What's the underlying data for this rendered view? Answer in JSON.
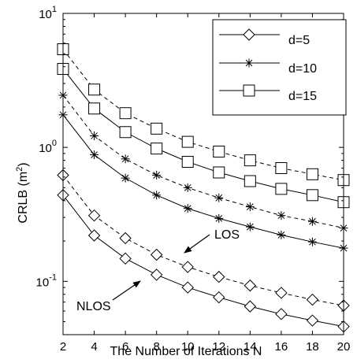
{
  "chart_data": {
    "type": "line",
    "title": "",
    "xlabel": "The Number of Iterations N",
    "ylabel_main": "CRLB (m",
    "ylabel_sup": "2",
    "ylabel_close": ")",
    "x": [
      2,
      4,
      6,
      8,
      10,
      12,
      14,
      16,
      18,
      20
    ],
    "xlim": [
      2,
      20
    ],
    "ylim": [
      0.04,
      10
    ],
    "yscale": "log",
    "grid": false,
    "y_ticks": [
      {
        "value": 0.1,
        "base": "10",
        "exp": "-1"
      },
      {
        "value": 1,
        "base": "10",
        "exp": "0"
      },
      {
        "value": 10,
        "base": "10",
        "exp": "1"
      }
    ],
    "x_ticks": [
      "2",
      "4",
      "6",
      "8",
      "10",
      "12",
      "14",
      "16",
      "18",
      "20"
    ],
    "legend": {
      "placement": "top-right",
      "entries": [
        {
          "label": "d=5",
          "marker": "diamond"
        },
        {
          "label": "d=10",
          "marker": "star"
        },
        {
          "label": "d=15",
          "marker": "square"
        }
      ]
    },
    "series": [
      {
        "group": "d=5",
        "marker": "diamond",
        "style": "dashed",
        "values": [
          0.62,
          0.31,
          0.21,
          0.158,
          0.128,
          0.108,
          0.093,
          0.082,
          0.073,
          0.066
        ]
      },
      {
        "group": "d=5",
        "marker": "diamond",
        "style": "solid",
        "values": [
          0.44,
          0.22,
          0.148,
          0.112,
          0.09,
          0.076,
          0.065,
          0.057,
          0.051,
          0.046
        ]
      },
      {
        "group": "d=10",
        "marker": "star",
        "style": "dashed",
        "values": [
          2.45,
          1.22,
          0.82,
          0.62,
          0.5,
          0.42,
          0.36,
          0.31,
          0.28,
          0.25
        ]
      },
      {
        "group": "d=10",
        "marker": "star",
        "style": "solid",
        "values": [
          1.75,
          0.88,
          0.59,
          0.44,
          0.35,
          0.295,
          0.255,
          0.222,
          0.197,
          0.177
        ]
      },
      {
        "group": "d=15",
        "marker": "square",
        "style": "dashed",
        "values": [
          5.4,
          2.7,
          1.8,
          1.38,
          1.1,
          0.93,
          0.8,
          0.7,
          0.63,
          0.57
        ]
      },
      {
        "group": "d=15",
        "marker": "square",
        "style": "solid",
        "values": [
          3.85,
          1.95,
          1.3,
          0.98,
          0.78,
          0.65,
          0.56,
          0.49,
          0.44,
          0.39
        ]
      }
    ],
    "annotations": [
      {
        "text": "LOS",
        "points_to": "d=5 dashed"
      },
      {
        "text": "NLOS",
        "points_to": "d=5 solid"
      }
    ]
  }
}
